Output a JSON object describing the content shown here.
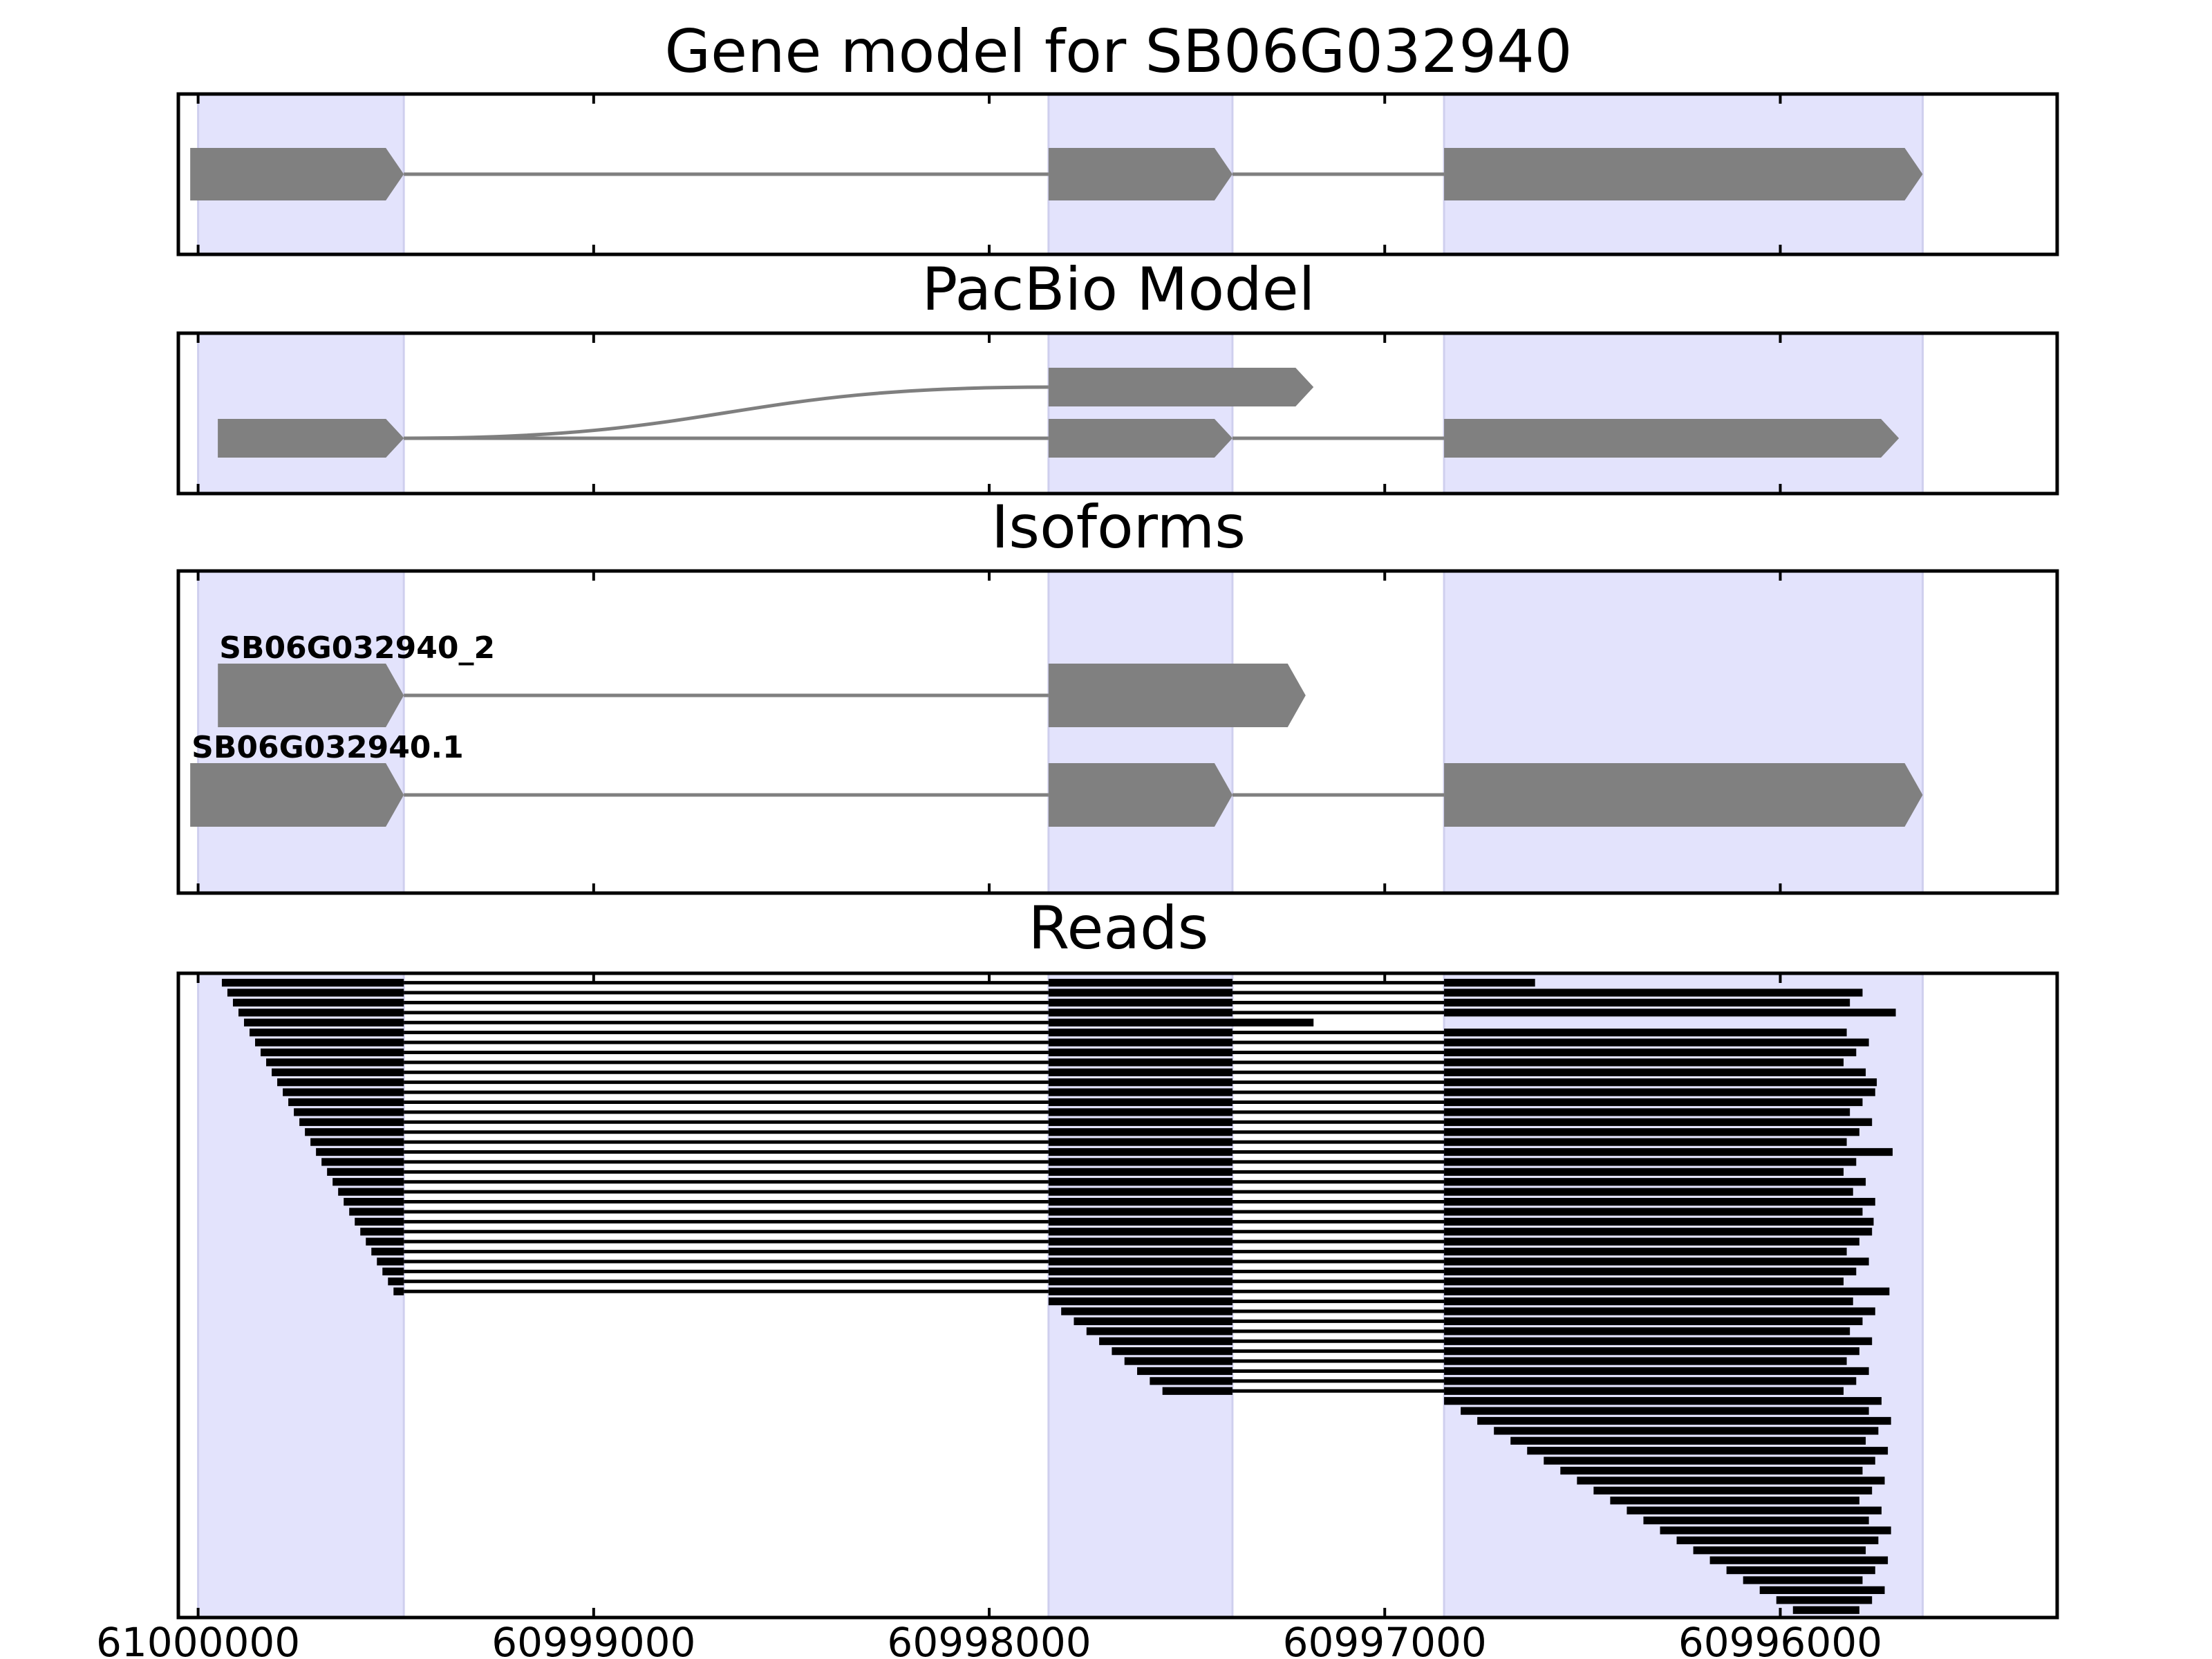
{
  "chart_data": {
    "type": "gene-model-alignment",
    "x_ticks": [
      61000000,
      60999000,
      60998000,
      60997000,
      60996000
    ],
    "x_tick_labels": [
      "61000000",
      "60999000",
      "60998000",
      "60997000",
      "60996000"
    ],
    "xlim": [
      61000050,
      60995300
    ],
    "x_direction": "reversed",
    "exon_regions": [
      [
        61000000,
        60999480
      ],
      [
        60997850,
        60997385
      ],
      [
        60996850,
        60995640
      ]
    ],
    "colors": {
      "exon_band": "#e3e3fc",
      "feature": "#808080",
      "intron_line": "#7f7f7f",
      "reads": "#000000"
    },
    "panels": [
      {
        "id": "gene_model",
        "title": "Gene model for SB06G032940",
        "models": [
          {
            "name": "",
            "exons": [
              [
                61000020,
                60999480
              ],
              [
                60997850,
                60997385
              ],
              [
                60996850,
                60995640
              ]
            ],
            "connection": "straight"
          }
        ]
      },
      {
        "id": "pacbio_model",
        "title": "PacBio Model",
        "models": [
          {
            "name": "",
            "exons": [
              [
                60999950,
                60999480
              ],
              [
                60997850,
                60997180
              ]
            ],
            "connection": "curve"
          },
          {
            "name": "",
            "exons": [
              [
                60999950,
                60999480
              ],
              [
                60997850,
                60997385
              ],
              [
                60996850,
                60995700
              ]
            ],
            "connection": "straight"
          }
        ]
      },
      {
        "id": "isoforms",
        "title": "Isoforms",
        "models": [
          {
            "name": "SB06G032940_2",
            "exons": [
              [
                60999950,
                60999480
              ],
              [
                60997850,
                60997200
              ]
            ],
            "connection": "straight"
          },
          {
            "name": "SB06G032940.1",
            "exons": [
              [
                61000020,
                60999480
              ],
              [
                60997850,
                60997385
              ],
              [
                60996850,
                60995640
              ]
            ],
            "connection": "straight"
          }
        ]
      },
      {
        "id": "reads",
        "title": "Reads",
        "read_count": 64
      }
    ]
  }
}
